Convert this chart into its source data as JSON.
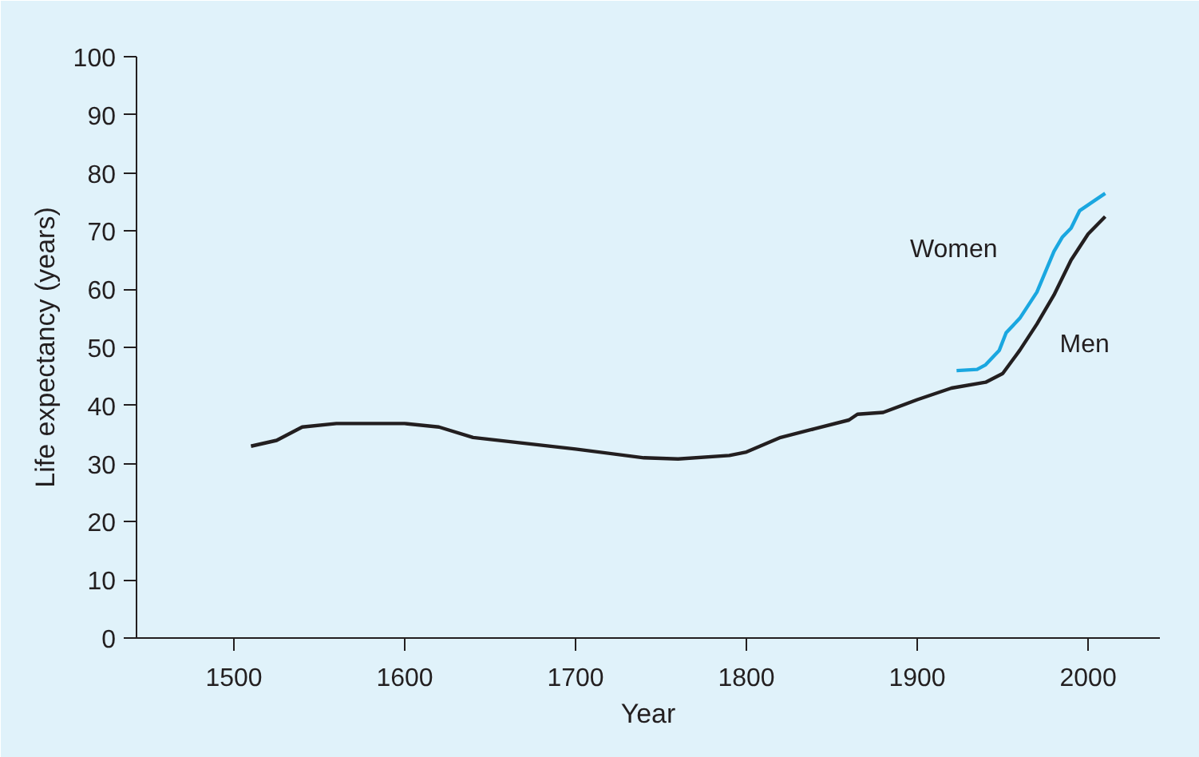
{
  "chart_data": {
    "type": "line",
    "xlabel": "Year",
    "ylabel": "Life expectancy (years)",
    "xlim": [
      1443,
      2042
    ],
    "xticks": [
      1500,
      1600,
      1700,
      1800,
      1900,
      2000
    ],
    "ylim": [
      0,
      100
    ],
    "yticks": [
      0,
      10,
      20,
      30,
      40,
      50,
      60,
      70,
      80,
      90,
      100
    ],
    "grid": false,
    "marker": "none",
    "line_style": "solid",
    "series": [
      {
        "name": "Men",
        "color": "#231f20",
        "x": [
          1510,
          1525,
          1540,
          1560,
          1600,
          1620,
          1640,
          1700,
          1740,
          1760,
          1790,
          1800,
          1820,
          1840,
          1860,
          1865,
          1880,
          1900,
          1920,
          1940,
          1950,
          1960,
          1970,
          1980,
          1990,
          2000,
          2010
        ],
        "values": [
          33,
          34,
          36.3,
          36.9,
          36.9,
          36.3,
          34.5,
          32.5,
          31,
          30.8,
          31.4,
          32,
          34.5,
          36,
          37.5,
          38.5,
          38.8,
          41,
          43,
          44,
          45.5,
          49.5,
          54,
          59,
          65,
          69.5,
          72.5
        ]
      },
      {
        "name": "Women",
        "color": "#1aa7e0",
        "x": [
          1923,
          1935,
          1940,
          1948,
          1952,
          1960,
          1970,
          1975,
          1980,
          1985,
          1990,
          1995,
          2000,
          2010
        ],
        "values": [
          46,
          46.2,
          47,
          49.5,
          52.5,
          55,
          59.5,
          63,
          66.5,
          69,
          70.5,
          73.5,
          74.5,
          76.5
        ]
      }
    ]
  }
}
